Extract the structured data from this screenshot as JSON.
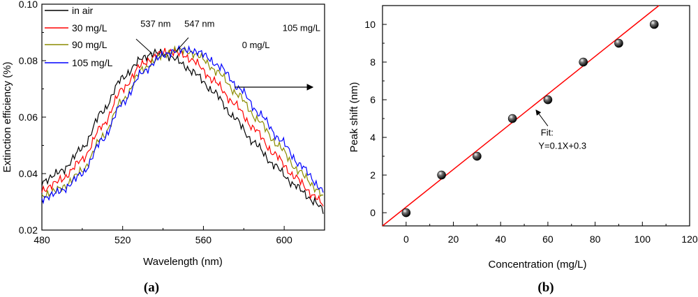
{
  "chart_data": [
    {
      "type": "line",
      "panel_label": "(a)",
      "xlabel": "Wavelength (nm)",
      "ylabel": "Extinction efficiency (%)",
      "xlim": [
        480,
        620
      ],
      "ylim": [
        0.02,
        0.1
      ],
      "xticks": [
        "480",
        "520",
        "560",
        "600"
      ],
      "xtick_values": [
        480,
        520,
        560,
        600
      ],
      "yticks": [
        "0.02",
        "0.04",
        "0.06",
        "0.08",
        "0.10"
      ],
      "ytick_values": [
        0.02,
        0.04,
        0.06,
        0.08,
        0.1
      ],
      "legend_position": "top-left",
      "series": [
        {
          "name": "in air",
          "color": "#000000",
          "x": [
            480,
            490,
            500,
            510,
            520,
            530,
            537,
            545,
            555,
            565,
            575,
            585,
            595,
            605,
            615,
            620
          ],
          "values": [
            0.037,
            0.041,
            0.049,
            0.062,
            0.074,
            0.081,
            0.083,
            0.081,
            0.076,
            0.069,
            0.06,
            0.051,
            0.043,
            0.036,
            0.03,
            0.027
          ]
        },
        {
          "name": "30 mg/L",
          "color": "#ff0000",
          "x": [
            480,
            490,
            500,
            510,
            520,
            530,
            540,
            547,
            555,
            565,
            575,
            585,
            595,
            605,
            615,
            620
          ],
          "values": [
            0.034,
            0.038,
            0.045,
            0.057,
            0.07,
            0.079,
            0.083,
            0.083,
            0.08,
            0.073,
            0.065,
            0.056,
            0.047,
            0.039,
            0.032,
            0.029
          ]
        },
        {
          "name": "90 mg/L",
          "color": "#8b8b00",
          "x": [
            480,
            490,
            500,
            510,
            520,
            530,
            540,
            548,
            557,
            567,
            577,
            587,
            597,
            607,
            617,
            620
          ],
          "values": [
            0.032,
            0.035,
            0.041,
            0.053,
            0.066,
            0.077,
            0.082,
            0.084,
            0.082,
            0.076,
            0.068,
            0.059,
            0.05,
            0.041,
            0.034,
            0.031
          ]
        },
        {
          "name": "105 mg/L",
          "color": "#0000ff",
          "x": [
            480,
            490,
            500,
            510,
            520,
            530,
            540,
            549,
            558,
            568,
            578,
            588,
            598,
            608,
            618,
            620
          ],
          "values": [
            0.031,
            0.034,
            0.04,
            0.052,
            0.065,
            0.076,
            0.082,
            0.084,
            0.083,
            0.078,
            0.07,
            0.061,
            0.052,
            0.043,
            0.035,
            0.032
          ]
        }
      ],
      "annotations": [
        {
          "text": "537 nm",
          "x": 537,
          "y": 0.093
        },
        {
          "text": "547 nm",
          "x": 547,
          "y": 0.092
        },
        {
          "text": "0 mg/L",
          "x": 586,
          "y": 0.0845
        },
        {
          "text": "105 mg/L",
          "x": 612,
          "y": 0.0755
        }
      ]
    },
    {
      "type": "scatter",
      "panel_label": "(b)",
      "xlabel": "Concentration (mg/L)",
      "ylabel": "Peak shift (nm)",
      "xlim": [
        -10,
        120
      ],
      "ylim": [
        -0.7,
        11
      ],
      "xticks": [
        "0",
        "20",
        "40",
        "60",
        "80",
        "100",
        "120"
      ],
      "xtick_values": [
        0,
        20,
        40,
        60,
        80,
        100,
        120
      ],
      "yticks": [
        "0",
        "2",
        "4",
        "6",
        "8",
        "10"
      ],
      "ytick_values": [
        0,
        2,
        4,
        6,
        8,
        10
      ],
      "points": {
        "x": [
          0,
          15,
          30,
          45,
          60,
          75,
          90,
          105
        ],
        "y": [
          0,
          2,
          3,
          5,
          6,
          8,
          9,
          10
        ]
      },
      "fit": {
        "slope": 0.1,
        "intercept": 0.3,
        "color": "#ff0000"
      },
      "annotations": [
        {
          "text": "Fit:",
          "x": 57,
          "y": 4.1
        },
        {
          "text": "Y=0.1X+0.3",
          "x": 56,
          "y": 3.4
        }
      ]
    }
  ]
}
